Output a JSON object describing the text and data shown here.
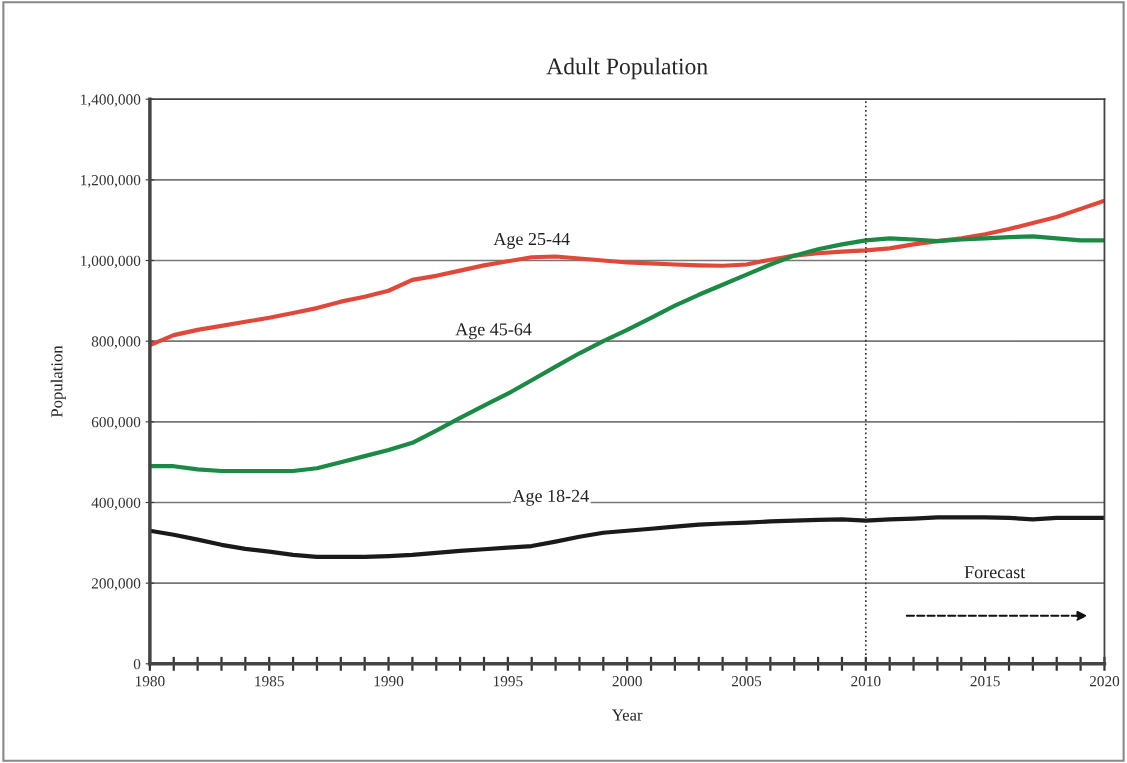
{
  "chart_data": {
    "type": "line",
    "title": "Adult Population",
    "xlabel": "Year",
    "ylabel": "Population",
    "x": [
      1980,
      1981,
      1982,
      1983,
      1984,
      1985,
      1986,
      1987,
      1988,
      1989,
      1990,
      1991,
      1992,
      1993,
      1994,
      1995,
      1996,
      1997,
      1998,
      1999,
      2000,
      2001,
      2002,
      2003,
      2004,
      2005,
      2006,
      2007,
      2008,
      2009,
      2010,
      2011,
      2012,
      2013,
      2014,
      2015,
      2016,
      2017,
      2018,
      2019,
      2020
    ],
    "series": [
      {
        "color": "#e0483a",
        "values": [
          790000,
          815000,
          828000,
          838000,
          848000,
          858000,
          870000,
          882000,
          898000,
          910000,
          925000,
          952000,
          962000,
          975000,
          988000,
          998000,
          1008000,
          1010000,
          1005000,
          1000000,
          995000,
          993000,
          990000,
          988000,
          987000,
          990000,
          1002000,
          1012000,
          1018000,
          1022000,
          1025000,
          1030000,
          1040000,
          1048000,
          1055000,
          1065000,
          1078000,
          1093000,
          1108000,
          1128000,
          1148000
        ]
      },
      {
        "color": "#1a8a45",
        "values": [
          490000,
          490000,
          482000,
          478000,
          478000,
          478000,
          478000,
          485000,
          500000,
          515000,
          530000,
          548000,
          578000,
          610000,
          640000,
          670000,
          703000,
          737000,
          770000,
          800000,
          828000,
          858000,
          888000,
          915000,
          940000,
          965000,
          990000,
          1012000,
          1028000,
          1040000,
          1050000,
          1055000,
          1052000,
          1048000,
          1052000,
          1055000,
          1058000,
          1060000,
          1055000,
          1050000,
          1050000
        ]
      },
      {
        "color": "#1a1a1a",
        "values": [
          330000,
          320000,
          308000,
          295000,
          285000,
          278000,
          270000,
          265000,
          265000,
          265000,
          267000,
          270000,
          275000,
          280000,
          284000,
          288000,
          292000,
          303000,
          315000,
          325000,
          330000,
          335000,
          340000,
          345000,
          348000,
          350000,
          353000,
          355000,
          357000,
          358000,
          355000,
          358000,
          360000,
          363000,
          363000,
          363000,
          362000,
          358000,
          362000,
          362000,
          362000
        ]
      }
    ],
    "xlim": [
      1980,
      2020
    ],
    "xticks": [
      1980,
      {
        "value": 1981,
        "label": null
      },
      {
        "value": 1982,
        "label": null
      },
      {
        "value": 1983,
        "label": null
      },
      {
        "value": 1984,
        "label": null
      },
      1985,
      {
        "value": 1986,
        "label": null
      },
      {
        "value": 1987,
        "label": null
      },
      {
        "value": 1988,
        "label": null
      },
      {
        "value": 1989,
        "label": null
      },
      1990,
      {
        "value": 1991,
        "label": null
      },
      {
        "value": 1992,
        "label": null
      },
      {
        "value": 1993,
        "label": null
      },
      {
        "value": 1994,
        "label": null
      },
      1995,
      {
        "value": 1996,
        "label": null
      },
      {
        "value": 1997,
        "label": null
      },
      {
        "value": 1998,
        "label": null
      },
      {
        "value": 1999,
        "label": null
      },
      2000,
      {
        "value": 2001,
        "label": null
      },
      {
        "value": 2002,
        "label": null
      },
      {
        "value": 2003,
        "label": null
      },
      {
        "value": 2004,
        "label": null
      },
      2005,
      {
        "value": 2006,
        "label": null
      },
      {
        "value": 2007,
        "label": null
      },
      {
        "value": 2008,
        "label": null
      },
      {
        "value": 2009,
        "label": null
      },
      2010,
      {
        "value": 2011,
        "label": null
      },
      {
        "value": 2012,
        "label": null
      },
      {
        "value": 2013,
        "label": null
      },
      {
        "value": 2014,
        "label": null
      },
      2015,
      {
        "value": 2016,
        "label": null
      },
      {
        "value": 2017,
        "label": null
      },
      {
        "value": 2018,
        "label": null
      },
      {
        "value": 2019,
        "label": null
      },
      2020
    ],
    "ylim": [
      0,
      1400000
    ],
    "yticks": [
      0,
      {
        "value": 200000,
        "label": "200,000"
      },
      {
        "value": 400000,
        "label": "400,000"
      },
      {
        "value": 600000,
        "label": "600,000"
      },
      {
        "value": 800000,
        "label": "800,000"
      },
      {
        "value": 1000000,
        "label": "1,000,000"
      },
      {
        "value": 1200000,
        "label": "1,200,000"
      },
      {
        "value": 1400000,
        "label": "1,400,000"
      }
    ],
    "grid": "y",
    "legend": false,
    "marker": "none",
    "line_style": "solid",
    "ref_lines": [
      {
        "axis": "x",
        "value": 2010,
        "line_style": "dotted",
        "color": "#333333"
      }
    ],
    "annotations": [
      "Age 25-44",
      "Age 45-64",
      "Age 18-24",
      "Forecast"
    ]
  }
}
